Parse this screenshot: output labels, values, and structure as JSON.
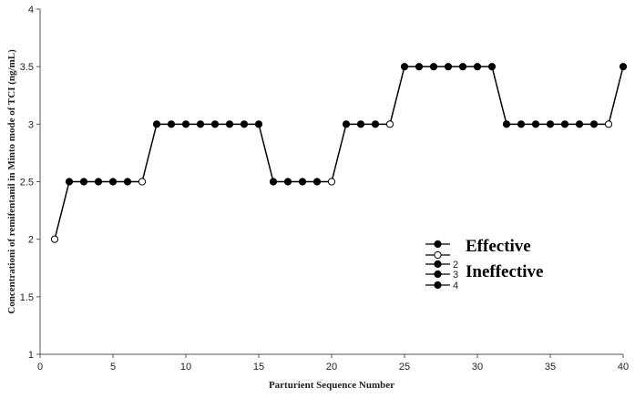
{
  "chart_data": {
    "type": "line",
    "xlabel": "Parturient Sequence Number",
    "ylabel": "Concentrationi of remifentanil in Minto mode of TCI (ng/mL)",
    "xlim": [
      0,
      40
    ],
    "ylim": [
      1,
      4
    ],
    "xticks": [
      "0",
      "5",
      "10",
      "15",
      "20",
      "25",
      "30",
      "35",
      "40"
    ],
    "yticks": [
      "1",
      "1.5",
      "2",
      "2.5",
      "3",
      "3.5",
      "4"
    ],
    "grid": false,
    "legend_position": "right",
    "legend": {
      "entries": [
        {
          "label": "Effective",
          "marker": "filled"
        },
        {
          "label": "",
          "marker": "open"
        },
        {
          "label": "2",
          "marker": "filled"
        },
        {
          "label": "3",
          "marker": "filled"
        },
        {
          "label": "4",
          "marker": "filled"
        }
      ],
      "ineffective_label": "Ineffective"
    },
    "x": [
      1,
      2,
      3,
      4,
      5,
      6,
      7,
      8,
      9,
      10,
      11,
      12,
      13,
      14,
      15,
      16,
      17,
      18,
      19,
      20,
      21,
      22,
      23,
      24,
      25,
      26,
      27,
      28,
      29,
      30,
      31,
      32,
      33,
      34,
      35,
      36,
      37,
      38,
      39,
      40
    ],
    "y": [
      2.0,
      2.5,
      2.5,
      2.5,
      2.5,
      2.5,
      2.5,
      3.0,
      3.0,
      3.0,
      3.0,
      3.0,
      3.0,
      3.0,
      3.0,
      2.5,
      2.5,
      2.5,
      2.5,
      2.5,
      3.0,
      3.0,
      3.0,
      3.0,
      3.5,
      3.5,
      3.5,
      3.5,
      3.5,
      3.5,
      3.5,
      3.0,
      3.0,
      3.0,
      3.0,
      3.0,
      3.0,
      3.0,
      3.0,
      3.5
    ],
    "effective": [
      false,
      true,
      true,
      true,
      true,
      true,
      false,
      true,
      true,
      true,
      true,
      true,
      true,
      true,
      true,
      true,
      true,
      true,
      true,
      false,
      true,
      true,
      true,
      false,
      true,
      true,
      true,
      true,
      true,
      true,
      true,
      true,
      true,
      true,
      true,
      true,
      true,
      true,
      false,
      true
    ],
    "colors": {
      "line": "#000000",
      "filled": "#000000",
      "open_fill": "#ffffff"
    }
  }
}
